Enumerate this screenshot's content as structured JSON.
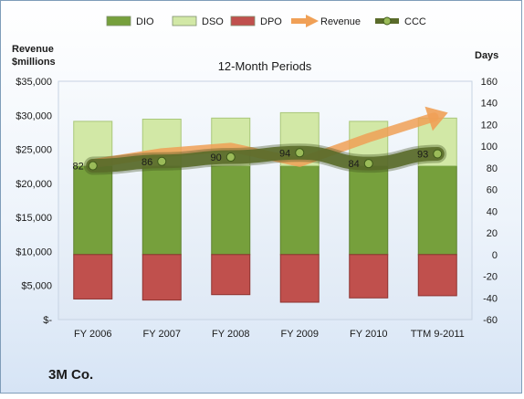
{
  "chart_data": {
    "type": "bar",
    "title": "12-Month Periods",
    "company": "3M Co.",
    "left_axis_title": [
      "Revenue",
      "$millions"
    ],
    "right_axis_title": "Days",
    "categories": [
      "FY 2006",
      "FY 2007",
      "FY 2008",
      "FY 2009",
      "FY 2010",
      "TTM 9-2011"
    ],
    "left_ticks": [
      "$-",
      "$5,000",
      "$10,000",
      "$15,000",
      "$20,000",
      "$25,000",
      "$30,000",
      "$35,000"
    ],
    "left_ylim": [
      0,
      35000
    ],
    "right_ylim": [
      -60,
      160
    ],
    "right_ticks": [
      -60,
      -40,
      -20,
      0,
      20,
      40,
      60,
      80,
      100,
      120,
      140,
      160
    ],
    "legend_position": "top",
    "grid": false,
    "series": [
      {
        "name": "DIO",
        "axis": "right",
        "kind": "stacked-bar",
        "color": "#76a03c",
        "values": [
          82,
          82,
          82,
          82,
          82,
          82
        ]
      },
      {
        "name": "DSO",
        "axis": "right",
        "kind": "stacked-bar",
        "color": "#d2e8a6",
        "values": [
          41,
          43,
          44,
          49,
          41,
          44
        ]
      },
      {
        "name": "DPO",
        "axis": "right",
        "kind": "negative-bar",
        "color": "#c0504d",
        "values": [
          -41,
          -42,
          -37,
          -44,
          -40,
          -38
        ]
      },
      {
        "name": "Revenue",
        "axis": "left",
        "kind": "arrow-line",
        "color": "#f0a056",
        "values": [
          22900,
          24500,
          25300,
          23100,
          26700,
          29900
        ]
      },
      {
        "name": "CCC",
        "axis": "right",
        "kind": "line",
        "color": "#5a6b2a",
        "values": [
          82,
          86,
          90,
          94,
          84,
          93
        ]
      }
    ]
  }
}
